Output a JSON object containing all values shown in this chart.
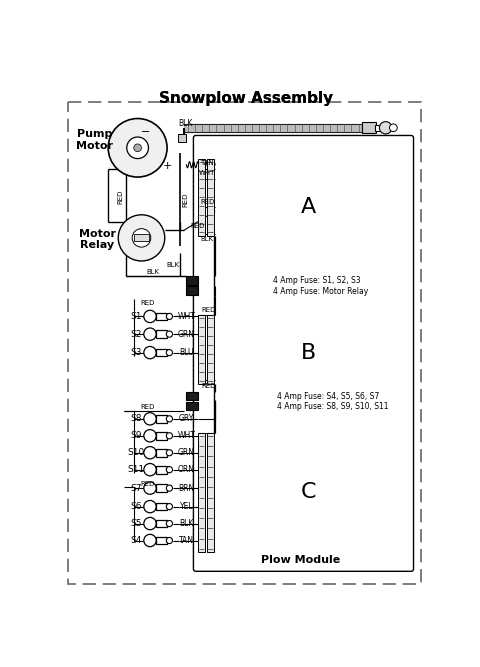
{
  "title": "Snowplow Assembly",
  "bg_color": "#ffffff",
  "fig_width": 4.81,
  "fig_height": 6.67,
  "dpi": 100,
  "pump_motor_label": "Pump\nMotor",
  "motor_relay_label": "Motor\nRelay",
  "plow_module_label": "Plow Module",
  "section_A_label": "A",
  "section_B_label": "B",
  "section_C_label": "C",
  "fuse_top_1": "4 Amp Fuse: S1, S2, S3",
  "fuse_top_2": "4 Amp Fuse: Motor Relay",
  "fuse_bot_1": "4 Amp Fuse: S4, S5, S6, S7",
  "fuse_bot_2": "4 Amp Fuse: S8, S9, S10, S11",
  "switches_s1s3": [
    {
      "name": "S1",
      "wire": "WHT"
    },
    {
      "name": "S2",
      "wire": "GRN"
    },
    {
      "name": "S3",
      "wire": "BLU"
    }
  ],
  "switches_s8s11": [
    {
      "name": "S8",
      "wire": "GRY"
    },
    {
      "name": "S9",
      "wire": "WHT"
    },
    {
      "name": "S10",
      "wire": "GRN"
    },
    {
      "name": "S11",
      "wire": "ORN"
    }
  ],
  "switches_s7s4": [
    {
      "name": "S7",
      "wire": "BRN"
    },
    {
      "name": "S6",
      "wire": "YEL"
    },
    {
      "name": "S5",
      "wire": "BLK"
    },
    {
      "name": "S4",
      "wire": "TAN"
    }
  ]
}
